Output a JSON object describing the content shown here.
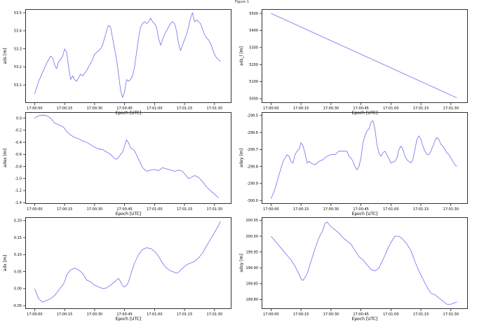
{
  "window": {
    "title": "Figure 1"
  },
  "style": {
    "line_color": "#6f6ff0",
    "axis_color": "#000000"
  },
  "chart_data": [
    {
      "type": "line",
      "ylabel": "ads [m]",
      "xlabel": "Epoch [UTC]",
      "x_ticks": [
        0,
        15,
        30,
        45,
        60,
        75,
        90
      ],
      "x_tick_labels": [
        "17:00:00",
        "17:00:15",
        "17:00:30",
        "17:00:45",
        "17:01:00",
        "17:01:15",
        "17:01:30"
      ],
      "xlim": [
        -4.7,
        98.5
      ],
      "ylim": [
        53.0,
        53.52
      ],
      "y_ticks": [
        53.1,
        53.2,
        53.3,
        53.4,
        53.5
      ],
      "y_tick_labels": [
        "53.1",
        "53.2",
        "53.3",
        "53.4",
        "53.5"
      ],
      "series": [
        {
          "x": [
            0,
            2,
            4,
            6,
            8,
            9,
            10,
            11,
            12,
            13,
            14,
            15,
            16,
            17,
            18,
            19,
            20,
            21,
            22,
            23,
            24,
            26,
            28,
            29,
            30,
            31,
            33,
            34,
            35,
            36,
            37,
            38,
            39,
            40,
            41,
            42,
            43,
            44,
            45,
            46,
            47,
            48,
            49,
            50,
            51,
            52,
            53,
            54,
            55,
            56,
            57,
            58,
            59,
            60,
            61,
            62,
            63,
            64,
            65,
            66,
            67,
            68,
            69,
            70,
            71,
            72,
            73,
            74,
            75,
            76,
            77,
            78,
            79,
            80,
            81,
            82,
            83,
            84,
            85,
            86,
            87,
            88,
            89,
            90,
            91,
            92,
            93
          ],
          "y": [
            53.05,
            53.12,
            53.17,
            53.22,
            53.26,
            53.25,
            53.21,
            53.19,
            53.23,
            53.24,
            53.26,
            53.3,
            53.28,
            53.2,
            53.13,
            53.15,
            53.13,
            53.12,
            53.14,
            53.16,
            53.15,
            53.18,
            53.22,
            53.24,
            53.27,
            53.28,
            53.3,
            53.32,
            53.36,
            53.4,
            53.43,
            53.42,
            53.36,
            53.3,
            53.24,
            53.16,
            53.07,
            53.03,
            53.06,
            53.13,
            53.12,
            53.13,
            53.15,
            53.2,
            53.28,
            53.36,
            53.42,
            53.44,
            53.45,
            53.44,
            53.45,
            53.47,
            53.45,
            53.44,
            53.42,
            53.36,
            53.32,
            53.35,
            53.38,
            53.4,
            53.42,
            53.44,
            53.45,
            53.44,
            53.4,
            53.33,
            53.29,
            53.32,
            53.35,
            53.38,
            53.42,
            53.47,
            53.5,
            53.45,
            53.46,
            53.45,
            53.44,
            53.41,
            53.38,
            53.36,
            53.35,
            53.33,
            53.3,
            53.27,
            53.25,
            53.24,
            53.23
          ]
        }
      ]
    },
    {
      "type": "line",
      "ylabel": "ads_l [m]",
      "xlabel": "Epoch [UTC]",
      "x_ticks": [
        0,
        15,
        30,
        45,
        60,
        75,
        90
      ],
      "x_tick_labels": [
        "17:00:00",
        "17:00:15",
        "17:00:30",
        "17:00:45",
        "17:01:00",
        "17:01:15",
        "17:01:30"
      ],
      "xlim": [
        -4.7,
        98.5
      ],
      "ylim": [
        4975,
        5525
      ],
      "y_ticks": [
        5000,
        5100,
        5200,
        5300,
        5400,
        5500
      ],
      "y_tick_labels": [
        "5000",
        "5100",
        "5200",
        "5300",
        "5400",
        "5500"
      ],
      "series": [
        {
          "x": [
            0,
            93
          ],
          "y": [
            5500,
            5005
          ]
        }
      ]
    },
    {
      "type": "line",
      "ylabel": "adex [m]",
      "xlabel": "Epoch [UTC]",
      "x_ticks": [
        0,
        15,
        30,
        45,
        60,
        75,
        90
      ],
      "x_tick_labels": [
        "17:00:00",
        "17:00:15",
        "17:00:30",
        "17:00:45",
        "17:01:00",
        "17:01:15",
        "17:01:30"
      ],
      "xlim": [
        -4.7,
        98.5
      ],
      "ylim": [
        -1.42,
        0.1
      ],
      "y_ticks": [
        0.0,
        -0.2,
        -0.4,
        -0.6,
        -0.8,
        -1.0,
        -1.2,
        -1.4
      ],
      "y_tick_labels": [
        "0.0",
        "-0.2",
        "-0.4",
        "-0.6",
        "-0.8",
        "-1.0",
        "-1.2",
        "-1.4"
      ],
      "series": [
        {
          "x": [
            0,
            2,
            4,
            6,
            7,
            8,
            9,
            10,
            12,
            14,
            15,
            16,
            18,
            20,
            22,
            24,
            26,
            28,
            30,
            32,
            34,
            36,
            38,
            40,
            41,
            42,
            43,
            44,
            45,
            46,
            47,
            48,
            50,
            52,
            54,
            56,
            58,
            60,
            62,
            64,
            66,
            68,
            70,
            72,
            74,
            76,
            77,
            78,
            80,
            82,
            84,
            86,
            88,
            90,
            92
          ],
          "y": [
            0.0,
            0.04,
            0.05,
            0.04,
            0.02,
            0.0,
            -0.04,
            -0.08,
            -0.11,
            -0.14,
            -0.17,
            -0.22,
            -0.28,
            -0.32,
            -0.34,
            -0.38,
            -0.4,
            -0.44,
            -0.48,
            -0.51,
            -0.52,
            -0.56,
            -0.6,
            -0.67,
            -0.68,
            -0.65,
            -0.6,
            -0.56,
            -0.46,
            -0.36,
            -0.41,
            -0.49,
            -0.54,
            -0.68,
            -0.82,
            -0.88,
            -0.86,
            -0.85,
            -0.87,
            -0.82,
            -0.84,
            -0.86,
            -0.88,
            -0.86,
            -0.88,
            -0.96,
            -1.0,
            -0.99,
            -0.95,
            -0.98,
            -1.05,
            -1.14,
            -1.2,
            -1.26,
            -1.32
          ]
        }
      ]
    },
    {
      "type": "line",
      "ylabel": "adey [m]",
      "xlabel": "Epoch [UTC]",
      "x_ticks": [
        0,
        15,
        30,
        45,
        60,
        75,
        90
      ],
      "x_tick_labels": [
        "17:00:00",
        "17:00:15",
        "17:00:30",
        "17:00:45",
        "17:01:00",
        "17:01:15",
        "17:01:30"
      ],
      "xlim": [
        -4.7,
        98.5
      ],
      "ylim": [
        -300.02,
        -299.48
      ],
      "y_ticks": [
        -300.0,
        -299.9,
        -299.8,
        -299.7,
        -299.6,
        -299.5
      ],
      "y_tick_labels": [
        "-300.0",
        "-299.9",
        "-299.8",
        "-299.7",
        "-299.6",
        "-299.5"
      ],
      "series": [
        {
          "x": [
            0,
            2,
            4,
            6,
            8,
            9,
            10,
            11,
            12,
            13,
            14,
            15,
            16,
            17,
            18,
            19,
            20,
            22,
            24,
            26,
            28,
            30,
            32,
            34,
            36,
            38,
            39,
            40,
            41,
            42,
            43,
            44,
            45,
            46,
            47,
            48,
            49,
            50,
            51,
            52,
            53,
            54,
            55,
            56,
            57,
            58,
            60,
            62,
            63,
            64,
            65,
            66,
            67,
            68,
            70,
            71,
            72,
            73,
            74,
            75,
            76,
            77,
            78,
            79,
            80,
            81,
            82,
            83,
            84,
            85,
            86,
            87,
            88,
            89,
            90,
            91,
            92,
            93
          ],
          "y": [
            -299.99,
            -299.93,
            -299.85,
            -299.77,
            -299.73,
            -299.74,
            -299.77,
            -299.78,
            -299.73,
            -299.71,
            -299.7,
            -299.66,
            -299.68,
            -299.72,
            -299.78,
            -299.77,
            -299.78,
            -299.79,
            -299.77,
            -299.76,
            -299.74,
            -299.73,
            -299.73,
            -299.71,
            -299.71,
            -299.71,
            -299.74,
            -299.75,
            -299.77,
            -299.8,
            -299.82,
            -299.8,
            -299.75,
            -299.66,
            -299.62,
            -299.59,
            -299.58,
            -299.54,
            -299.53,
            -299.58,
            -299.67,
            -299.72,
            -299.74,
            -299.72,
            -299.71,
            -299.73,
            -299.78,
            -299.77,
            -299.75,
            -299.7,
            -299.68,
            -299.7,
            -299.74,
            -299.76,
            -299.78,
            -299.76,
            -299.7,
            -299.64,
            -299.62,
            -299.64,
            -299.68,
            -299.71,
            -299.73,
            -299.73,
            -299.71,
            -299.68,
            -299.65,
            -299.63,
            -299.64,
            -299.67,
            -299.68,
            -299.7,
            -299.72,
            -299.73,
            -299.75,
            -299.77,
            -299.79,
            -299.8
          ]
        }
      ]
    },
    {
      "type": "line",
      "ylabel": "adx [m]",
      "xlabel": "Epoch [UTC]",
      "x_ticks": [
        0,
        15,
        30,
        45,
        60,
        75,
        90
      ],
      "x_tick_labels": [
        "17:00:00",
        "17:00:15",
        "17:00:30",
        "17:00:45",
        "17:01:00",
        "17:01:15",
        "17:01:30"
      ],
      "xlim": [
        -4.7,
        98.5
      ],
      "ylim": [
        -0.06,
        0.21
      ],
      "y_ticks": [
        -0.05,
        0.0,
        0.05,
        0.1,
        0.15,
        0.2
      ],
      "y_tick_labels": [
        "-0.05",
        "0.00",
        "0.05",
        "0.10",
        "0.15",
        "0.20"
      ],
      "series": [
        {
          "x": [
            0,
            2,
            4,
            6,
            8,
            10,
            12,
            14,
            15,
            16,
            18,
            20,
            21,
            22,
            24,
            26,
            28,
            30,
            32,
            34,
            36,
            38,
            40,
            42,
            43,
            44,
            45,
            46,
            47,
            48,
            50,
            52,
            54,
            56,
            58,
            60,
            62,
            64,
            66,
            68,
            70,
            71,
            72,
            73,
            74,
            76,
            78,
            80,
            82,
            84,
            86,
            88,
            90,
            92,
            93
          ],
          "y": [
            0.0,
            -0.03,
            -0.04,
            -0.035,
            -0.03,
            -0.02,
            -0.005,
            0.01,
            0.02,
            0.04,
            0.055,
            0.06,
            0.058,
            0.055,
            0.045,
            0.025,
            0.02,
            0.01,
            0.005,
            0.0,
            0.002,
            0.01,
            0.02,
            0.03,
            0.02,
            0.008,
            0.005,
            0.01,
            0.02,
            0.04,
            0.075,
            0.1,
            0.115,
            0.12,
            0.118,
            0.11,
            0.095,
            0.075,
            0.06,
            0.052,
            0.048,
            0.045,
            0.048,
            0.055,
            0.06,
            0.07,
            0.075,
            0.08,
            0.09,
            0.105,
            0.125,
            0.145,
            0.165,
            0.185,
            0.198
          ]
        }
      ]
    },
    {
      "type": "line",
      "ylabel": "adsy [m]",
      "xlabel": "Epoch [UTC]",
      "x_ticks": [
        0,
        15,
        30,
        45,
        60,
        75,
        90
      ],
      "x_tick_labels": [
        "17:00:00",
        "17:00:15",
        "17:00:30",
        "17:00:45",
        "17:01:00",
        "17:01:15",
        "17:01:30"
      ],
      "xlim": [
        -4.7,
        98.5
      ],
      "ylim": [
        199.77,
        200.06
      ],
      "y_ticks": [
        199.8,
        199.85,
        199.9,
        199.95,
        200.0,
        200.05
      ],
      "y_tick_labels": [
        "199.80",
        "199.85",
        "199.90",
        "199.95",
        "200.00",
        "200.05"
      ],
      "series": [
        {
          "x": [
            0,
            2,
            4,
            6,
            8,
            10,
            12,
            14,
            15,
            16,
            18,
            20,
            22,
            24,
            26,
            27,
            28,
            30,
            32,
            34,
            36,
            38,
            40,
            42,
            44,
            45,
            46,
            48,
            50,
            52,
            54,
            56,
            58,
            60,
            62,
            64,
            66,
            68,
            70,
            72,
            74,
            76,
            78,
            80,
            82,
            84,
            86,
            88,
            90,
            92,
            93
          ],
          "y": [
            200.0,
            199.985,
            199.97,
            199.955,
            199.94,
            199.925,
            199.905,
            199.88,
            199.865,
            199.86,
            199.88,
            199.92,
            199.96,
            199.995,
            200.02,
            200.04,
            200.045,
            200.03,
            200.02,
            200.01,
            199.995,
            199.985,
            199.975,
            199.955,
            199.935,
            199.93,
            199.925,
            199.91,
            199.895,
            199.89,
            199.9,
            199.925,
            199.955,
            199.98,
            200.0,
            200.0,
            199.99,
            199.975,
            199.955,
            199.92,
            199.89,
            199.865,
            199.84,
            199.82,
            199.815,
            199.805,
            199.795,
            199.785,
            199.785,
            199.79,
            199.792
          ]
        }
      ]
    }
  ]
}
